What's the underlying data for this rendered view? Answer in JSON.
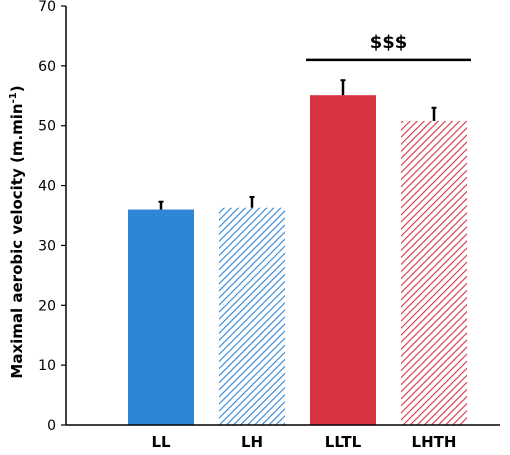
{
  "chart_data": {
    "type": "bar",
    "categories": [
      "LL",
      "LH",
      "LLTL",
      "LHTH"
    ],
    "values": [
      36.0,
      36.3,
      55.1,
      50.8
    ],
    "errors": [
      1.3,
      1.8,
      2.5,
      2.2
    ],
    "fill_styles": [
      "solid",
      "hatched",
      "solid",
      "hatched"
    ],
    "colors": [
      "#2e86d6",
      "#2e86d6",
      "#d63440",
      "#d63440"
    ],
    "ylabel_main": "Maximal aerobic velocity (m.min",
    "ylabel_sup": "-1",
    "ylabel_end": ")",
    "ylim": [
      0,
      70
    ],
    "yticks": [
      "0",
      "10",
      "20",
      "30",
      "40",
      "50",
      "60",
      "70"
    ],
    "grid": false,
    "annotation": {
      "text": "$$$",
      "from_category": "LLTL",
      "to_category": "LHTH",
      "y": 61
    }
  }
}
